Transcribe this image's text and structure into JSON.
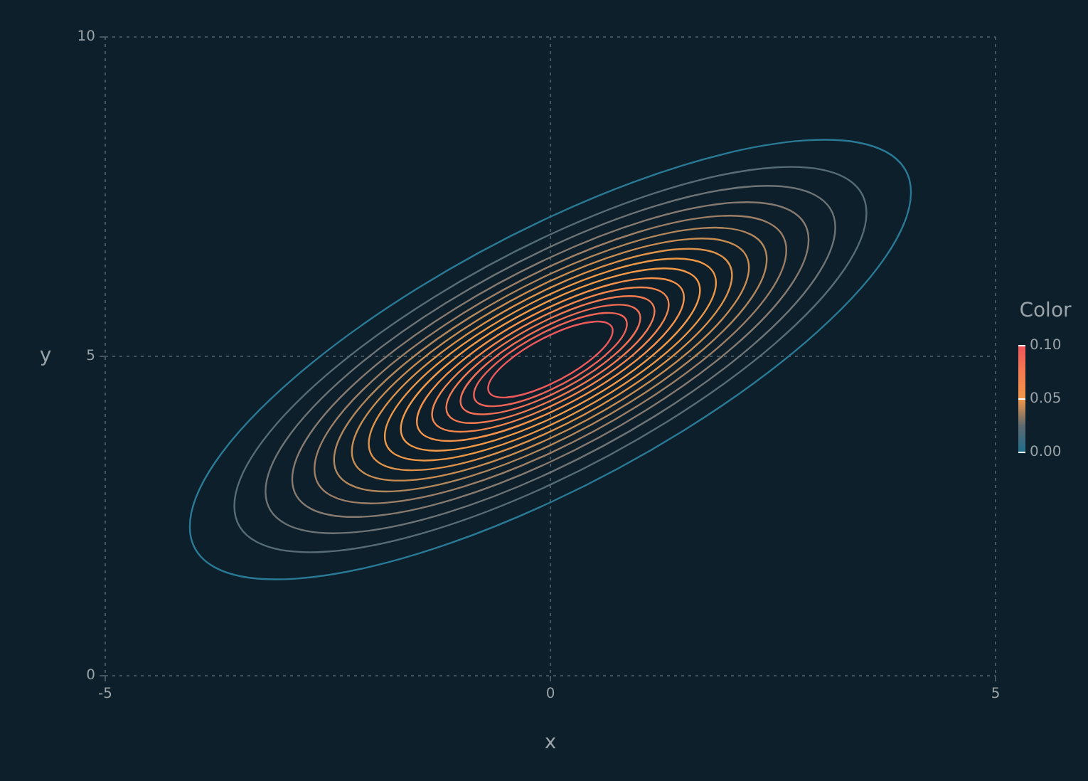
{
  "chart_data": {
    "type": "line",
    "xlabel": "x",
    "ylabel": "y",
    "clabel": "Color",
    "xlim": [
      -5,
      5
    ],
    "ylim": [
      0,
      10
    ],
    "xticks": [
      -5,
      0,
      5
    ],
    "yticks": [
      0,
      5,
      10
    ],
    "grid": true,
    "clim": [
      0,
      0.1
    ],
    "cticks": [
      {
        "value": 0,
        "label": "0.00"
      },
      {
        "value": 0.05,
        "label": "0.05"
      },
      {
        "value": 0.1,
        "label": "0.10"
      }
    ]
  }
}
